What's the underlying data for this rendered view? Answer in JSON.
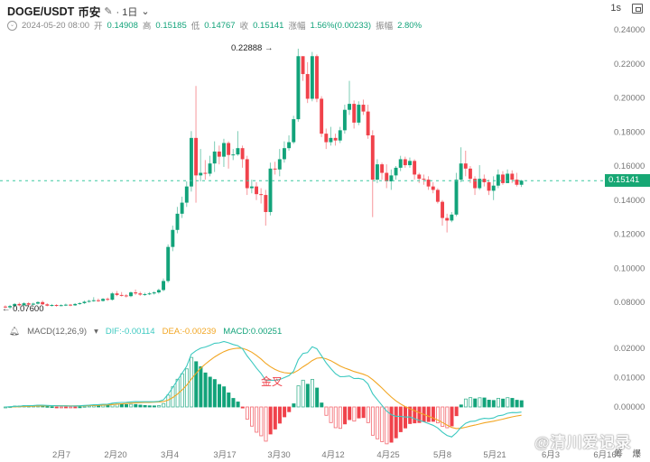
{
  "header": {
    "symbol": "DOGE/USDT",
    "exchange": "币安",
    "interval": "· 1日",
    "interval_chevron": "⌄",
    "edit_icon": "✎"
  },
  "ohlc_bar": {
    "datetime": "2024-05-20 08:00",
    "open_label": "开",
    "open": "0.14908",
    "high_label": "高",
    "high": "0.15185",
    "low_label": "低",
    "low": "0.14767",
    "close_label": "收",
    "close": "0.15141",
    "change_label": "涨幅",
    "change": "1.56%(0.00233)",
    "amplitude_label": "振幅",
    "amplitude": "2.80%"
  },
  "top_right": {
    "refresh": "1s",
    "screenshot_icon": "screen-icon"
  },
  "price_axis": {
    "ticks": [
      "0.24000",
      "0.22000",
      "0.20000",
      "0.18000",
      "0.16000",
      "0.14000",
      "0.12000",
      "0.10000",
      "0.08000"
    ],
    "current_price": "0.15141"
  },
  "annotations": {
    "high_marker": "0.22888",
    "low_marker": "0.07600",
    "golden_cross": "金叉"
  },
  "macd": {
    "title": "MACD(12,26,9)",
    "dropdown": "▾",
    "dif": "DIF:-0.00114",
    "dea": "DEA:-0.00239",
    "macd": "MACD:0.00251",
    "ticks": [
      "0.02000",
      "0.01000",
      "0.00000"
    ]
  },
  "x_axis": {
    "ticks": [
      "2月7",
      "2月20",
      "3月4",
      "3月17",
      "3月30",
      "4月12",
      "4月25",
      "5月8",
      "5月21",
      "6月3",
      "6月16"
    ]
  },
  "footer": {
    "right_label": "筹 爆",
    "watermark": "@清川爱记录"
  },
  "colors": {
    "up": "#12a37a",
    "down": "#f0424b",
    "dif": "#3cc9c0",
    "dea": "#f2a623",
    "price_line": "#3cc9a0"
  },
  "chart_data": {
    "type": "candlestick",
    "title": "DOGE/USDT 币安 1日",
    "x_ticks": [
      "2月7",
      "2月20",
      "3月4",
      "3月17",
      "3月30",
      "4月12",
      "4月25",
      "5月8",
      "5月21",
      "6月3",
      "6月16"
    ],
    "ylim": [
      0.07,
      0.245
    ],
    "y_ticks": [
      0.08,
      0.1,
      0.12,
      0.14,
      0.16,
      0.18,
      0.2,
      0.22,
      0.24
    ],
    "ohlc": [
      [
        0.0775,
        0.077,
        0.0782,
        0.0765
      ],
      [
        0.077,
        0.0778,
        0.0785,
        0.076
      ],
      [
        0.0778,
        0.079,
        0.0795,
        0.0772
      ],
      [
        0.079,
        0.0782,
        0.0798,
        0.0776
      ],
      [
        0.0782,
        0.0794,
        0.08,
        0.0778
      ],
      [
        0.0794,
        0.0786,
        0.0801,
        0.078
      ],
      [
        0.0786,
        0.0792,
        0.0798,
        0.0781
      ],
      [
        0.0792,
        0.0801,
        0.0806,
        0.0787
      ],
      [
        0.0801,
        0.0788,
        0.081,
        0.0784
      ],
      [
        0.0788,
        0.078,
        0.0795,
        0.0776
      ],
      [
        0.078,
        0.0784,
        0.079,
        0.0775
      ],
      [
        0.0784,
        0.078,
        0.0789,
        0.0774
      ],
      [
        0.078,
        0.0783,
        0.0788,
        0.0776
      ],
      [
        0.0783,
        0.0786,
        0.0792,
        0.0778
      ],
      [
        0.0786,
        0.0782,
        0.079,
        0.0777
      ],
      [
        0.0782,
        0.079,
        0.0795,
        0.0779
      ],
      [
        0.079,
        0.0795,
        0.08,
        0.0785
      ],
      [
        0.0795,
        0.0803,
        0.081,
        0.079
      ],
      [
        0.0803,
        0.0808,
        0.0815,
        0.0798
      ],
      [
        0.0808,
        0.0812,
        0.083,
        0.0803
      ],
      [
        0.0812,
        0.0808,
        0.0822,
        0.0802
      ],
      [
        0.0808,
        0.082,
        0.0825,
        0.0804
      ],
      [
        0.082,
        0.0815,
        0.0828,
        0.0808
      ],
      [
        0.0815,
        0.0852,
        0.086,
        0.081
      ],
      [
        0.0852,
        0.0843,
        0.0866,
        0.0836
      ],
      [
        0.0843,
        0.084,
        0.086,
        0.0834
      ],
      [
        0.084,
        0.0836,
        0.0848,
        0.0828
      ],
      [
        0.0836,
        0.0858,
        0.0864,
        0.083
      ],
      [
        0.0858,
        0.0852,
        0.0875,
        0.0843
      ],
      [
        0.0852,
        0.0845,
        0.0862,
        0.0838
      ],
      [
        0.0845,
        0.0848,
        0.0856,
        0.0838
      ],
      [
        0.0848,
        0.0852,
        0.086,
        0.0842
      ],
      [
        0.0852,
        0.0858,
        0.0865,
        0.0845
      ],
      [
        0.0858,
        0.0872,
        0.088,
        0.085
      ],
      [
        0.0872,
        0.0925,
        0.094,
        0.0865
      ],
      [
        0.0925,
        0.1125,
        0.114,
        0.0915
      ],
      [
        0.1125,
        0.1225,
        0.125,
        0.11
      ],
      [
        0.1225,
        0.132,
        0.136,
        0.1205
      ],
      [
        0.132,
        0.1385,
        0.142,
        0.1295
      ],
      [
        0.1385,
        0.148,
        0.151,
        0.136
      ],
      [
        0.148,
        0.1765,
        0.1805,
        0.145
      ],
      [
        0.1765,
        0.1545,
        0.207,
        0.1385
      ],
      [
        0.1545,
        0.156,
        0.17,
        0.151
      ],
      [
        0.156,
        0.1555,
        0.1635,
        0.152
      ],
      [
        0.1555,
        0.1615,
        0.166,
        0.154
      ],
      [
        0.1615,
        0.1685,
        0.1745,
        0.1565
      ],
      [
        0.1685,
        0.1655,
        0.172,
        0.161
      ],
      [
        0.1655,
        0.1735,
        0.176,
        0.1595
      ],
      [
        0.1735,
        0.1665,
        0.1745,
        0.1585
      ],
      [
        0.1665,
        0.1668,
        0.17,
        0.1635
      ],
      [
        0.1668,
        0.1705,
        0.1805,
        0.166
      ],
      [
        0.1705,
        0.164,
        0.172,
        0.159
      ],
      [
        0.164,
        0.147,
        0.166,
        0.143
      ],
      [
        0.147,
        0.148,
        0.152,
        0.144
      ],
      [
        0.148,
        0.1435,
        0.1505,
        0.14
      ],
      [
        0.1435,
        0.143,
        0.147,
        0.138
      ],
      [
        0.143,
        0.133,
        0.146,
        0.125
      ],
      [
        0.133,
        0.1585,
        0.162,
        0.131
      ],
      [
        0.1585,
        0.158,
        0.1625,
        0.155
      ],
      [
        0.158,
        0.164,
        0.17,
        0.154
      ],
      [
        0.164,
        0.1705,
        0.1745,
        0.162
      ],
      [
        0.1705,
        0.174,
        0.178,
        0.169
      ],
      [
        0.174,
        0.1875,
        0.1895,
        0.173
      ],
      [
        0.1875,
        0.2245,
        0.2289,
        0.186
      ],
      [
        0.2245,
        0.214,
        0.221,
        0.21
      ],
      [
        0.214,
        0.1995,
        0.221,
        0.197
      ],
      [
        0.1995,
        0.2245,
        0.227,
        0.198
      ],
      [
        0.2245,
        0.1995,
        0.2255,
        0.1975
      ],
      [
        0.1995,
        0.179,
        0.201,
        0.177
      ],
      [
        0.179,
        0.174,
        0.182,
        0.17
      ],
      [
        0.174,
        0.1765,
        0.183,
        0.172
      ],
      [
        0.1765,
        0.175,
        0.179,
        0.172
      ],
      [
        0.175,
        0.181,
        0.183,
        0.1735
      ],
      [
        0.181,
        0.193,
        0.196,
        0.179
      ],
      [
        0.193,
        0.1965,
        0.21,
        0.19
      ],
      [
        0.1965,
        0.1855,
        0.1985,
        0.182
      ],
      [
        0.1855,
        0.196,
        0.198,
        0.184
      ],
      [
        0.196,
        0.192,
        0.199,
        0.19
      ],
      [
        0.192,
        0.178,
        0.196,
        0.176
      ],
      [
        0.178,
        0.152,
        0.181,
        0.13
      ],
      [
        0.152,
        0.161,
        0.164,
        0.15
      ],
      [
        0.161,
        0.156,
        0.162,
        0.152
      ],
      [
        0.156,
        0.151,
        0.161,
        0.147
      ],
      [
        0.151,
        0.1545,
        0.158,
        0.146
      ],
      [
        0.1545,
        0.159,
        0.16,
        0.152
      ],
      [
        0.159,
        0.164,
        0.166,
        0.157
      ],
      [
        0.164,
        0.1605,
        0.1655,
        0.159
      ],
      [
        0.1605,
        0.163,
        0.165,
        0.159
      ],
      [
        0.163,
        0.155,
        0.164,
        0.152
      ],
      [
        0.155,
        0.1525,
        0.156,
        0.15
      ],
      [
        0.1525,
        0.152,
        0.155,
        0.149
      ],
      [
        0.152,
        0.148,
        0.154,
        0.146
      ],
      [
        0.148,
        0.146,
        0.1505,
        0.144
      ],
      [
        0.146,
        0.139,
        0.147,
        0.138
      ],
      [
        0.139,
        0.1295,
        0.14,
        0.125
      ],
      [
        0.1295,
        0.128,
        0.132,
        0.121
      ],
      [
        0.128,
        0.1315,
        0.133,
        0.127
      ],
      [
        0.1315,
        0.152,
        0.156,
        0.1305
      ],
      [
        0.152,
        0.1615,
        0.171,
        0.1505
      ],
      [
        0.1615,
        0.1585,
        0.169,
        0.154
      ],
      [
        0.1585,
        0.1525,
        0.16,
        0.15
      ],
      [
        0.1525,
        0.147,
        0.154,
        0.143
      ],
      [
        0.147,
        0.1525,
        0.1605,
        0.146
      ],
      [
        0.1525,
        0.1505,
        0.155,
        0.148
      ],
      [
        0.1505,
        0.1455,
        0.152,
        0.143
      ],
      [
        0.1455,
        0.1485,
        0.154,
        0.14
      ],
      [
        0.1485,
        0.155,
        0.158,
        0.147
      ],
      [
        0.155,
        0.15,
        0.157,
        0.149
      ],
      [
        0.15,
        0.1555,
        0.158,
        0.15
      ],
      [
        0.1555,
        0.152,
        0.1575,
        0.15
      ],
      [
        0.152,
        0.149,
        0.156,
        0.148
      ],
      [
        0.149,
        0.1514,
        0.1519,
        0.1477
      ]
    ]
  }
}
